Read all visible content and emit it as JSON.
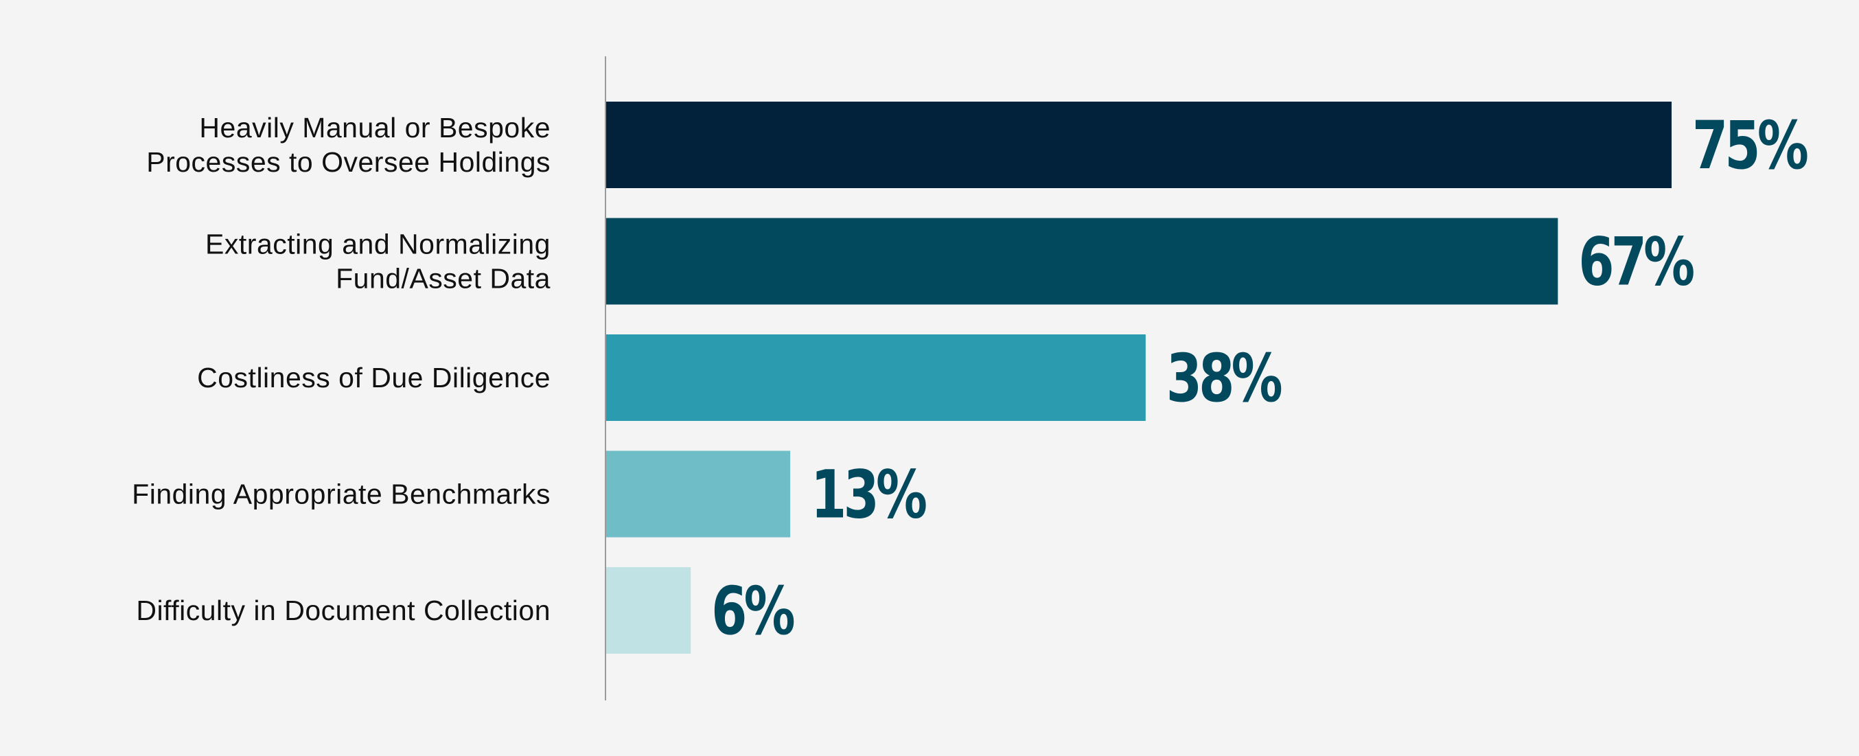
{
  "chart_data": {
    "type": "bar",
    "orientation": "horizontal",
    "categories": [
      [
        "Heavily Manual or Bespoke",
        "Processes to Oversee Holdings"
      ],
      [
        "Extracting and Normalizing",
        "Fund/Asset Data"
      ],
      [
        "Costliness of Due Diligence"
      ],
      [
        "Finding Appropriate Benchmarks"
      ],
      [
        "Difficulty in Document Collection"
      ]
    ],
    "values": [
      75,
      67,
      38,
      13,
      6
    ],
    "value_labels": [
      "75%",
      "67%",
      "38%",
      "13%",
      "6%"
    ],
    "xlim": [
      0,
      75
    ],
    "bar_colors": [
      "#02223b",
      "#03495e",
      "#2b9caf",
      "#6fbec7",
      "#c0e2e5"
    ],
    "value_label_color": "#03495e",
    "axis_line_color": "#9a9a9a",
    "background": "#f4f4f4",
    "grid": false,
    "legend": "none"
  }
}
